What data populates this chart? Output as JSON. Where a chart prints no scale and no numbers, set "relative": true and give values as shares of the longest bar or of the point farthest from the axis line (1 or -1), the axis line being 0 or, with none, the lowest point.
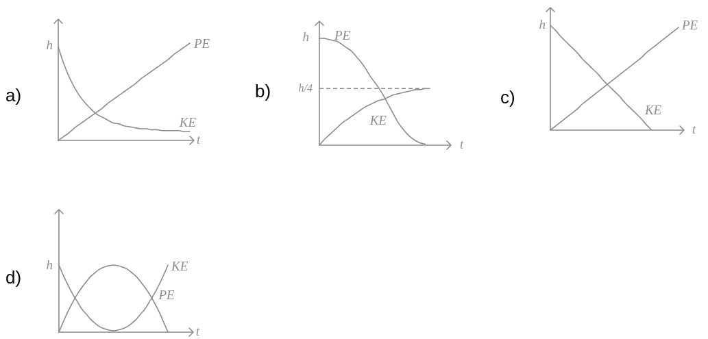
{
  "chart_data": [
    {
      "type": "line",
      "title": "a)",
      "xlabel": "t",
      "relative": true,
      "categories": [
        null,
        null,
        null,
        null,
        null,
        null,
        null,
        null,
        null,
        null,
        null,
        null,
        null,
        null,
        null,
        null,
        null,
        null,
        null,
        null,
        null,
        null,
        null,
        null,
        null
      ],
      "series": [
        {
          "name": "PE",
          "color": "#8c8c8c",
          "values": [
            0,
            0.04,
            0.08,
            0.13,
            0.17,
            0.21,
            0.25,
            0.29,
            0.33,
            0.38,
            0.42,
            0.46,
            0.5,
            0.54,
            0.58,
            0.63,
            0.67,
            0.71,
            0.75,
            0.79,
            0.83,
            0.88,
            0.92,
            0.96,
            1
          ]
        },
        {
          "name": "KE",
          "color": "#8c8c8c",
          "values": [
            0.96,
            0.79,
            0.65,
            0.54,
            0.45,
            0.38,
            0.32,
            0.27,
            0.24,
            0.21,
            0.18,
            0.17,
            0.15,
            0.14,
            0.13,
            0.12,
            0.12,
            0.11,
            0.11,
            0.1,
            0.1,
            0.1,
            0.1,
            0.09,
            0.09
          ]
        }
      ],
      "annotations": [
        "h"
      ]
    },
    {
      "type": "line",
      "title": "b)",
      "xlabel": "t",
      "relative": true,
      "categories": [
        null,
        null,
        null,
        null,
        null,
        null,
        null,
        null,
        null,
        null,
        null,
        null,
        null,
        null,
        null,
        null,
        null,
        null,
        null,
        null,
        null,
        null,
        null,
        null,
        null
      ],
      "series": [
        {
          "name": "PE",
          "color": "#8c8c8c",
          "values": [
            1,
            1,
            0.99,
            0.98,
            0.97,
            0.94,
            0.91,
            0.88,
            0.83,
            0.78,
            0.72,
            0.65,
            0.59,
            0.53,
            0.46,
            0.38,
            0.3,
            0.22,
            0.16,
            0.11,
            0.07,
            0.04,
            0.02,
            0.01,
            null
          ]
        },
        {
          "name": "KE",
          "color": "#8c8c8c",
          "values": [
            0,
            0.05,
            0.09,
            0.13,
            0.17,
            0.21,
            0.24,
            0.27,
            0.3,
            0.33,
            0.36,
            0.38,
            0.4,
            0.42,
            0.43,
            0.45,
            0.47,
            0.48,
            0.49,
            0.5,
            0.51,
            0.52,
            0.52,
            0.53,
            0.53
          ]
        }
      ],
      "annotations": [
        "h"
      ],
      "ref_lines": [
        {
          "axis": "y",
          "value": 0.53,
          "label": "h/4",
          "line_style": "dashed",
          "color": "#8c8c8c"
        }
      ]
    },
    {
      "type": "line",
      "title": "c)",
      "xlabel": "t",
      "relative": true,
      "categories": [
        null,
        null,
        null,
        null,
        null,
        null,
        null,
        null,
        null,
        null,
        null,
        null,
        null,
        null,
        null,
        null,
        null,
        null,
        null,
        null,
        null,
        null,
        null,
        null,
        null
      ],
      "series": [
        {
          "name": "PE",
          "color": "#8c8c8c",
          "values": [
            0,
            0.04,
            0.08,
            0.12,
            0.16,
            0.2,
            0.25,
            0.29,
            0.33,
            0.37,
            0.41,
            0.45,
            0.49,
            0.53,
            0.57,
            0.61,
            0.65,
            0.69,
            0.74,
            0.78,
            0.82,
            0.86,
            0.9,
            0.94,
            0.98
          ]
        },
        {
          "name": "KE",
          "color": "#8c8c8c",
          "values": [
            1,
            0.95,
            0.89,
            0.84,
            0.79,
            0.74,
            0.68,
            0.63,
            0.58,
            0.53,
            0.47,
            0.42,
            0.37,
            0.32,
            0.26,
            0.21,
            0.16,
            0.11,
            0.05,
            0,
            null,
            null,
            null,
            null,
            null
          ]
        }
      ],
      "annotations": [
        "h"
      ]
    },
    {
      "type": "line",
      "title": "d)",
      "xlabel": "t",
      "relative": true,
      "categories": [
        null,
        null,
        null,
        null,
        null,
        null,
        null,
        null,
        null,
        null,
        null,
        null,
        null,
        null,
        null,
        null,
        null,
        null,
        null,
        null,
        null,
        null,
        null,
        null,
        null
      ],
      "series": [
        {
          "name": "PE",
          "color": "#8c8c8c",
          "values": [
            0,
            0.16,
            0.31,
            0.44,
            0.56,
            0.66,
            0.75,
            0.83,
            0.89,
            0.94,
            0.97,
            0.99,
            1,
            0.99,
            0.97,
            0.94,
            0.89,
            0.83,
            0.75,
            0.66,
            0.56,
            0.44,
            0.31,
            0.16,
            0
          ]
        },
        {
          "name": "KE",
          "color": "#8c8c8c",
          "values": [
            1,
            0.84,
            0.7,
            0.57,
            0.46,
            0.35,
            0.27,
            0.19,
            0.13,
            0.08,
            0.05,
            0.03,
            0.02,
            0.03,
            0.05,
            0.08,
            0.13,
            0.19,
            0.27,
            0.35,
            0.46,
            0.57,
            0.7,
            0.84,
            1
          ]
        }
      ],
      "annotations": [
        "h"
      ]
    }
  ]
}
